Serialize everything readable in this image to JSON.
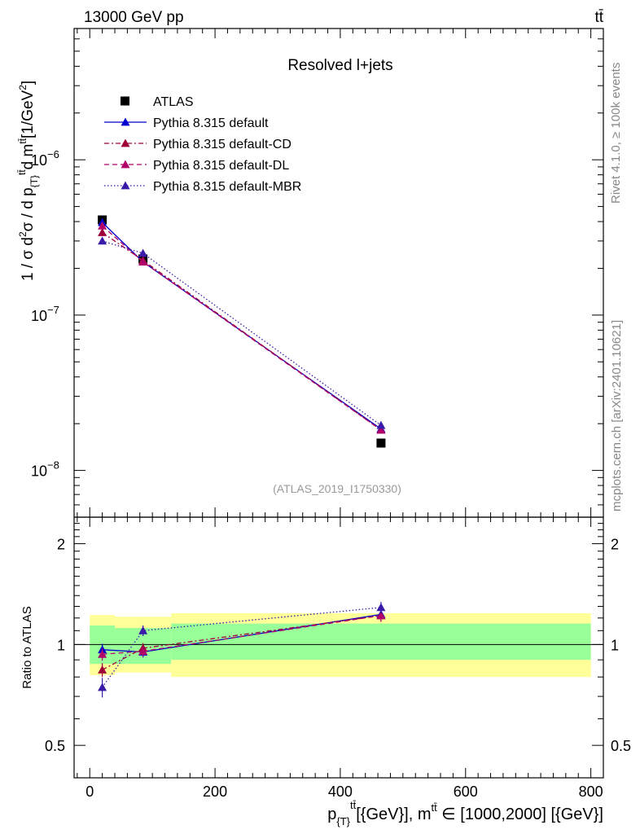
{
  "header": {
    "left": "13000 GeV pp",
    "right": "tt̄"
  },
  "side": {
    "rivet": "Rivet 4.1.0, ≥ 100k events",
    "mcplots": "mcplots.cern.ch [arXiv:2401.10621]"
  },
  "chart_data": {
    "type": "line",
    "title": "Resolved l+jets",
    "watermark": "(ATLAS_2019_I1750330)",
    "xlabel": "p_{T}^{tt̄} [GeV], m^{tt̄} ∈ [1000,2000] [GeV]",
    "xlabel_parts": {
      "p": "p",
      "psub": "{T}",
      "psup": "tt̄",
      "unit": "[{GeV}], m",
      "msup": "tt̄",
      "range": " ∈ [1000,2000] [{GeV}]"
    },
    "ylabel": "1 / σ d²σ / d p_{T}^{tt̄} d m^{tt̄} [1/GeV²]",
    "ylabel_parts": {
      "main": "1 / σ d",
      "sup2": "2",
      "mid": "σ / d p",
      "sub1": "{T}",
      "sup3": "tt̄",
      "d": "d m",
      "sup4": "tt̄",
      "unit": "[1/GeV",
      "sup5": "2",
      "close": "]"
    },
    "ratio_ylabel": "Ratio to ATLAS",
    "xlim": [
      -25,
      820
    ],
    "ylim": [
      5e-09,
      7e-06
    ],
    "ratio_ylim": [
      0.4,
      2.4
    ],
    "x_ticks": [
      0,
      200,
      400,
      600,
      800
    ],
    "x_tick_labels": [
      "0",
      "200",
      "400",
      "600",
      "800"
    ],
    "y_ticks": [
      1e-08,
      1e-07,
      1e-06
    ],
    "y_tick_labels": [
      {
        "base": "10",
        "exp": "−8"
      },
      {
        "base": "10",
        "exp": "−7"
      },
      {
        "base": "10",
        "exp": "−6"
      }
    ],
    "ratio_ticks": [
      0.5,
      1,
      2
    ],
    "ratio_tick_labels": [
      "0.5",
      "1",
      "2"
    ],
    "bins": [
      [
        0,
        40
      ],
      [
        40,
        130
      ],
      [
        130,
        800
      ]
    ],
    "band_inner": [
      [
        0.875,
        1.14
      ],
      [
        0.875,
        1.12
      ],
      [
        0.9,
        1.155
      ]
    ],
    "band_outer": [
      [
        0.81,
        1.225
      ],
      [
        0.825,
        1.21
      ],
      [
        0.8,
        1.24
      ]
    ],
    "legend_position": "upper-left",
    "series": [
      {
        "name": "ATLAS",
        "style": "data",
        "color": "#000000",
        "x": [
          20,
          85,
          465
        ],
        "y": [
          4.1e-07,
          2.3e-07,
          1.5e-08
        ]
      },
      {
        "name": "Pythia 8.315 default",
        "style": "solid",
        "color": "#0000cc",
        "x": [
          20,
          85,
          465
        ],
        "y": [
          3.95e-07,
          2.2e-07,
          1.85e-08
        ],
        "ratio": [
          0.965,
          0.95,
          1.23
        ],
        "ratio_err": [
          0.04,
          0.035,
          0.05
        ]
      },
      {
        "name": "Pythia 8.315 default-CD",
        "style": "dashdot",
        "color": "#a0003a",
        "x": [
          20,
          85,
          465
        ],
        "y": [
          3.4e-07,
          2.25e-07,
          1.82e-08
        ],
        "ratio": [
          0.84,
          0.975,
          1.22
        ],
        "ratio_err": [
          0.04,
          0.035,
          0.05
        ]
      },
      {
        "name": "Pythia 8.315 default-DL",
        "style": "dashed",
        "color": "#b0006a",
        "x": [
          20,
          85,
          465
        ],
        "y": [
          3.75e-07,
          2.2e-07,
          1.82e-08
        ],
        "ratio": [
          0.935,
          0.955,
          1.22
        ],
        "ratio_err": [
          0.04,
          0.035,
          0.05
        ]
      },
      {
        "name": "Pythia 8.315 default-MBR",
        "style": "dotted",
        "color": "#3a1aa8",
        "x": [
          20,
          85,
          465
        ],
        "y": [
          3e-07,
          2.5e-07,
          1.95e-08
        ],
        "ratio": [
          0.745,
          1.1,
          1.29
        ],
        "ratio_err": [
          0.05,
          0.04,
          0.05
        ]
      }
    ]
  }
}
